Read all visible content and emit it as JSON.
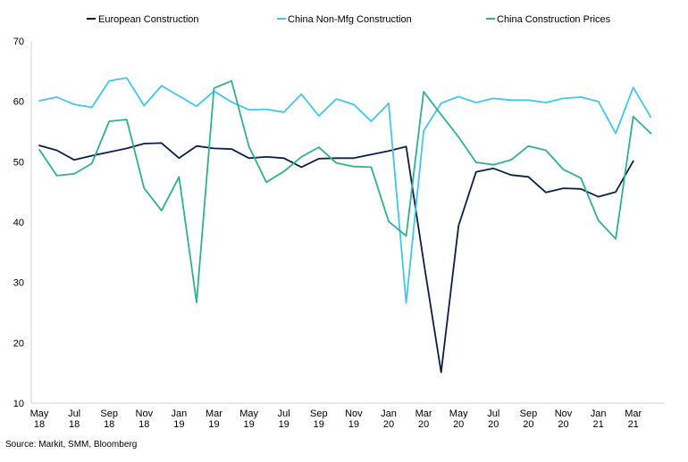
{
  "chart_data": {
    "type": "line",
    "title": "",
    "xlabel": "",
    "ylabel": "",
    "ylim": [
      10,
      70
    ],
    "yticks": [
      10,
      20,
      30,
      40,
      50,
      60,
      70
    ],
    "grid": false,
    "legend_position": "top",
    "x": [
      "May-18",
      "Jun-18",
      "Jul-18",
      "Aug-18",
      "Sep-18",
      "Oct-18",
      "Nov-18",
      "Dec-18",
      "Jan-19",
      "Feb-19",
      "Mar-19",
      "Apr-19",
      "May-19",
      "Jun-19",
      "Jul-19",
      "Aug-19",
      "Sep-19",
      "Oct-19",
      "Nov-19",
      "Dec-19",
      "Jan-20",
      "Feb-20",
      "Mar-20",
      "Apr-20",
      "May-20",
      "Jun-20",
      "Jul-20",
      "Aug-20",
      "Sep-20",
      "Oct-20",
      "Nov-20",
      "Dec-20",
      "Jan-21",
      "Feb-21",
      "Mar-21",
      "Apr-21"
    ],
    "tick_labels": [
      {
        "index": 0,
        "line1": "May",
        "line2": "18"
      },
      {
        "index": 2,
        "line1": "Jul",
        "line2": "18"
      },
      {
        "index": 4,
        "line1": "Sep",
        "line2": "18"
      },
      {
        "index": 6,
        "line1": "Nov",
        "line2": "18"
      },
      {
        "index": 8,
        "line1": "Jan",
        "line2": "19"
      },
      {
        "index": 10,
        "line1": "Mar",
        "line2": "19"
      },
      {
        "index": 12,
        "line1": "May",
        "line2": "19"
      },
      {
        "index": 14,
        "line1": "Jul",
        "line2": "19"
      },
      {
        "index": 16,
        "line1": "Sep",
        "line2": "19"
      },
      {
        "index": 18,
        "line1": "Nov",
        "line2": "19"
      },
      {
        "index": 20,
        "line1": "Jan",
        "line2": "20"
      },
      {
        "index": 22,
        "line1": "Mar",
        "line2": "20"
      },
      {
        "index": 24,
        "line1": "May",
        "line2": "20"
      },
      {
        "index": 26,
        "line1": "Jul",
        "line2": "20"
      },
      {
        "index": 28,
        "line1": "Sep",
        "line2": "20"
      },
      {
        "index": 30,
        "line1": "Nov",
        "line2": "20"
      },
      {
        "index": 32,
        "line1": "Jan",
        "line2": "21"
      },
      {
        "index": 34,
        "line1": "Mar",
        "line2": "21"
      }
    ],
    "series": [
      {
        "name": "European Construction",
        "color": "#0b1f4a",
        "values": [
          52.7,
          51.9,
          50.3,
          51.0,
          51.6,
          52.2,
          53.0,
          53.1,
          50.6,
          52.6,
          52.2,
          52.1,
          50.6,
          50.8,
          50.6,
          49.1,
          50.5,
          50.6,
          50.6,
          51.2,
          51.8,
          52.5,
          33.5,
          15.1,
          39.4,
          48.3,
          48.9,
          47.8,
          47.5,
          44.9,
          45.6,
          45.5,
          44.2,
          45.0,
          50.1,
          null
        ]
      },
      {
        "name": "China Non-Mfg Construction",
        "color": "#40c8ea",
        "values": [
          60.1,
          60.7,
          59.5,
          59.0,
          63.4,
          63.9,
          59.3,
          62.6,
          60.9,
          59.2,
          61.7,
          59.9,
          58.6,
          58.7,
          58.2,
          61.2,
          57.6,
          60.4,
          59.5,
          56.7,
          59.7,
          26.6,
          55.1,
          59.7,
          60.8,
          59.8,
          60.5,
          60.2,
          60.2,
          59.8,
          60.5,
          60.7,
          60.0,
          54.7,
          62.3,
          57.4
        ]
      },
      {
        "name": "China Construction Prices",
        "color": "#2fb28e",
        "values": [
          52.0,
          47.7,
          48.0,
          49.7,
          56.7,
          57.0,
          45.6,
          41.9,
          47.5,
          26.7,
          62.2,
          63.4,
          52.5,
          46.6,
          48.4,
          50.8,
          52.4,
          49.8,
          49.2,
          49.1,
          40.1,
          37.7,
          61.6,
          57.8,
          54.1,
          49.9,
          49.5,
          50.3,
          52.6,
          51.9,
          48.7,
          47.3,
          40.3,
          37.2,
          57.5,
          54.7
        ]
      }
    ]
  },
  "source_text": "Source: Markit, SMM, Bloomberg"
}
